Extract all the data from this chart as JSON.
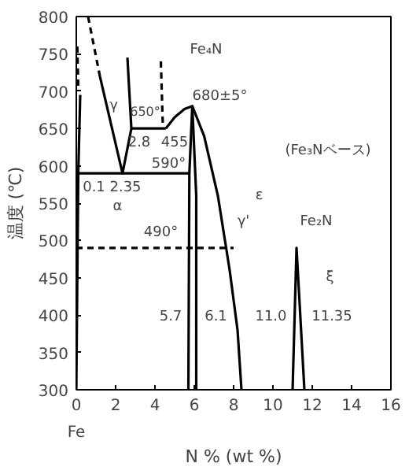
{
  "chart_data": {
    "type": "line",
    "xlabel": "N % (wt %)",
    "ylabel": "温度 (℃)",
    "xlim": [
      0,
      16
    ],
    "ylim": [
      300,
      800
    ],
    "xticks": [
      0,
      2,
      4,
      6,
      8,
      10,
      12,
      14,
      16
    ],
    "yticks": [
      300,
      350,
      400,
      450,
      500,
      550,
      600,
      650,
      700,
      750,
      800
    ],
    "grid": false,
    "marker": "none",
    "series": [
      {
        "color": "#000000",
        "line_style": "solid",
        "x": [
          0.2,
          0.1,
          0.0
        ],
        "values": [
          695,
          590,
          300
        ]
      },
      {
        "color": "#000000",
        "line_style": "dashed",
        "x": [
          0.05,
          0.1
        ],
        "values": [
          760,
          705
        ]
      },
      {
        "color": "#000000",
        "line_style": "dashed",
        "x": [
          0.6,
          1.2
        ],
        "values": [
          800,
          720
        ]
      },
      {
        "color": "#000000",
        "line_style": "solid",
        "x": [
          1.2,
          2.35,
          2.8,
          2.6
        ],
        "values": [
          720,
          590,
          650,
          745
        ]
      },
      {
        "color": "#000000",
        "line_style": "solid",
        "x": [
          2.8,
          4.55
        ],
        "values": [
          650,
          650
        ]
      },
      {
        "color": "#000000",
        "line_style": "dashed",
        "x": [
          4.3,
          4.4
        ],
        "values": [
          740,
          655
        ]
      },
      {
        "color": "#000000",
        "line_style": "solid",
        "x": [
          0.1,
          5.75
        ],
        "values": [
          590,
          590
        ]
      },
      {
        "color": "#000000",
        "line_style": "solid",
        "x": [
          4.55,
          5.0,
          5.5,
          5.9,
          6.5,
          7.2,
          7.8,
          8.2,
          8.4
        ],
        "values": [
          650,
          665,
          676,
          680,
          640,
          560,
          460,
          380,
          300
        ]
      },
      {
        "color": "#000000",
        "line_style": "solid",
        "x": [
          5.9,
          5.75,
          5.7
        ],
        "values": [
          680,
          590,
          300
        ]
      },
      {
        "color": "#000000",
        "line_style": "solid",
        "x": [
          5.9,
          6.1,
          6.1
        ],
        "values": [
          680,
          560,
          300
        ]
      },
      {
        "color": "#000000",
        "line_style": "dashed",
        "x": [
          0.0,
          8.0
        ],
        "values": [
          490,
          490
        ]
      },
      {
        "color": "#000000",
        "line_style": "solid",
        "x": [
          11.0,
          11.2,
          11.6
        ],
        "values": [
          300,
          490,
          300
        ]
      }
    ],
    "annotations": [
      "650°",
      "2.8",
      "455",
      "590°",
      "0.1",
      "2.35",
      "680±5°",
      "Fe₄N",
      "α",
      "γ",
      "γ'",
      "ε",
      "ξ",
      "490°",
      "5.7",
      "6.1",
      "11.0",
      "11.35",
      "(Fe₃Nベース)",
      "Fe₂N",
      "Fe"
    ]
  }
}
